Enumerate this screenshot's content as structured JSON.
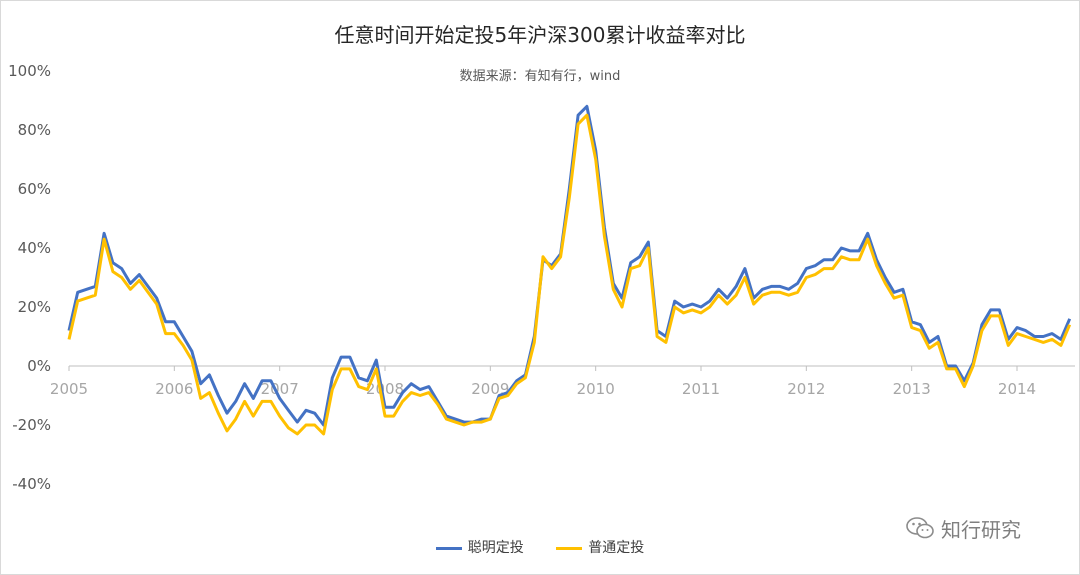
{
  "chart_data": {
    "type": "line",
    "title": "任意时间开始定投5年沪深300累计收益率对比",
    "subtitle": "数据来源：有知有行，wind",
    "xlabel": "",
    "ylabel": "",
    "x_ticks": [
      "2005",
      "2006",
      "2007",
      "2008",
      "2009",
      "2010",
      "2011",
      "2012",
      "2013",
      "2014"
    ],
    "y_ticks": [
      "100%",
      "80%",
      "60%",
      "40%",
      "20%",
      "0%",
      "-20%",
      "-40%"
    ],
    "ylim": [
      -40,
      100
    ],
    "xlim": [
      2005.0,
      2014.5
    ],
    "grid": false,
    "legend_position": "bottom",
    "x": [
      2005.0,
      2005.083,
      2005.167,
      2005.25,
      2005.333,
      2005.417,
      2005.5,
      2005.583,
      2005.667,
      2005.75,
      2005.833,
      2005.917,
      2006.0,
      2006.083,
      2006.167,
      2006.25,
      2006.333,
      2006.417,
      2006.5,
      2006.583,
      2006.667,
      2006.75,
      2006.833,
      2006.917,
      2007.0,
      2007.083,
      2007.167,
      2007.25,
      2007.333,
      2007.417,
      2007.5,
      2007.583,
      2007.667,
      2007.75,
      2007.833,
      2007.917,
      2008.0,
      2008.083,
      2008.167,
      2008.25,
      2008.333,
      2008.417,
      2008.5,
      2008.583,
      2008.667,
      2008.75,
      2008.833,
      2008.917,
      2009.0,
      2009.083,
      2009.167,
      2009.25,
      2009.333,
      2009.417,
      2009.5,
      2009.583,
      2009.667,
      2009.75,
      2009.833,
      2009.917,
      2010.0,
      2010.083,
      2010.167,
      2010.25,
      2010.333,
      2010.417,
      2010.5,
      2010.583,
      2010.667,
      2010.75,
      2010.833,
      2010.917,
      2011.0,
      2011.083,
      2011.167,
      2011.25,
      2011.333,
      2011.417,
      2011.5,
      2011.583,
      2011.667,
      2011.75,
      2011.833,
      2011.917,
      2012.0,
      2012.083,
      2012.167,
      2012.25,
      2012.333,
      2012.417,
      2012.5,
      2012.583,
      2012.667,
      2012.75,
      2012.833,
      2012.917,
      2013.0,
      2013.083,
      2013.167,
      2013.25,
      2013.333,
      2013.417,
      2013.5,
      2013.583,
      2013.667,
      2013.75,
      2013.833,
      2013.917,
      2014.0,
      2014.083,
      2014.167,
      2014.25,
      2014.333,
      2014.417,
      2014.5
    ],
    "series": [
      {
        "name": "聪明定投",
        "color": "#4472c4",
        "values": [
          12,
          25,
          26,
          27,
          45,
          35,
          33,
          28,
          31,
          27,
          23,
          15,
          15,
          10,
          5,
          -6,
          -3,
          -10,
          -16,
          -12,
          -6,
          -11,
          -5,
          -5,
          -11,
          -15,
          -19,
          -15,
          -16,
          -20,
          -4,
          3,
          3,
          -4,
          -5,
          2,
          -14,
          -14,
          -9,
          -6,
          -8,
          -7,
          -12,
          -17,
          -18,
          -19,
          -19,
          -18,
          -18,
          -10,
          -9,
          -5,
          -3,
          10,
          36,
          34,
          38,
          60,
          85,
          88,
          73,
          47,
          28,
          23,
          35,
          37,
          42,
          12,
          10,
          22,
          20,
          21,
          20,
          22,
          26,
          23,
          27,
          33,
          23,
          26,
          27,
          27,
          26,
          28,
          33,
          34,
          36,
          36,
          40,
          39,
          39,
          45,
          36,
          30,
          25,
          26,
          15,
          14,
          8,
          10,
          0,
          0,
          -5,
          1,
          14,
          19,
          19,
          9,
          13,
          12,
          10,
          10,
          11,
          9,
          16
        ]
      },
      {
        "name": "普通定投",
        "color": "#ffc000",
        "values": [
          9,
          22,
          23,
          24,
          43,
          32,
          30,
          26,
          29,
          25,
          21,
          11,
          11,
          7,
          2,
          -11,
          -9,
          -16,
          -22,
          -18,
          -12,
          -17,
          -12,
          -12,
          -17,
          -21,
          -23,
          -20,
          -20,
          -23,
          -8,
          -1,
          -1,
          -7,
          -8,
          -1,
          -17,
          -17,
          -12,
          -9,
          -10,
          -9,
          -13,
          -18,
          -19,
          -20,
          -19,
          -19,
          -18,
          -11,
          -10,
          -6,
          -4,
          8,
          37,
          33,
          37,
          57,
          82,
          85,
          70,
          44,
          26,
          20,
          33,
          34,
          40,
          10,
          8,
          20,
          18,
          19,
          18,
          20,
          24,
          21,
          24,
          30,
          21,
          24,
          25,
          25,
          24,
          25,
          30,
          31,
          33,
          33,
          37,
          36,
          36,
          43,
          34,
          28,
          23,
          24,
          13,
          12,
          6,
          8,
          -1,
          -1,
          -7,
          0,
          12,
          17,
          17,
          7,
          11,
          10,
          9,
          8,
          9,
          7,
          14
        ]
      }
    ]
  },
  "watermark": {
    "text": "知行研究",
    "icon": "wechat-icon"
  }
}
